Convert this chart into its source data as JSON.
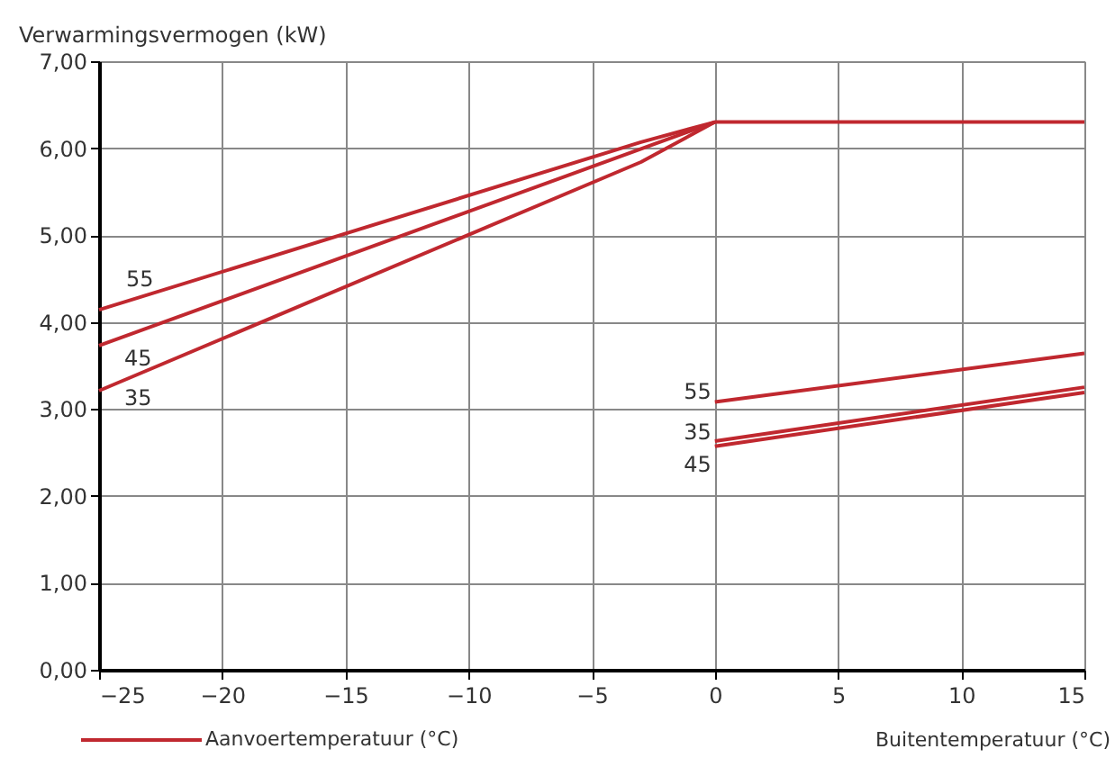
{
  "chart_data": {
    "type": "line",
    "ylabel": "Verwarmingsvermogen (kW)",
    "xlabel": "Buitentemperatuur (°C)",
    "legend_title": "Aanvoertemperatuur (°C)",
    "grid": true,
    "marker": "none",
    "line_style": "solid",
    "xlim": [
      -25,
      15
    ],
    "xticks": [
      -25,
      -20,
      -15,
      -10,
      -5,
      0,
      5,
      10,
      15
    ],
    "ylim": [
      0,
      7
    ],
    "yticks": [
      {
        "value": 0,
        "label": "0,00"
      },
      {
        "value": 1,
        "label": "1,00"
      },
      {
        "value": 2,
        "label": "2,00"
      },
      {
        "value": 3,
        "label": "3,00"
      },
      {
        "value": 4,
        "label": "4,00"
      },
      {
        "value": 5,
        "label": "5,00"
      },
      {
        "value": 6,
        "label": "6,00"
      },
      {
        "value": 7,
        "label": "7,00"
      }
    ],
    "series": [
      {
        "name": "55",
        "color": "#c0282f",
        "x": [
          -25,
          -3,
          0,
          15
        ],
        "values": [
          4.14,
          6.07,
          6.3,
          6.3
        ]
      },
      {
        "name": "45",
        "color": "#c0282f",
        "x": [
          -25,
          0
        ],
        "values": [
          3.73,
          6.3
        ]
      },
      {
        "name": "35",
        "color": "#c0282f",
        "x": [
          -25,
          -3,
          0
        ],
        "values": [
          3.21,
          5.84,
          6.3
        ]
      },
      {
        "name": "55",
        "color": "#c0282f",
        "x": [
          0,
          15
        ],
        "values": [
          3.08,
          3.64
        ]
      },
      {
        "name": "35",
        "color": "#c0282f",
        "x": [
          0,
          15
        ],
        "values": [
          2.63,
          3.25
        ]
      },
      {
        "name": "45",
        "color": "#c0282f",
        "x": [
          0,
          15
        ],
        "values": [
          2.57,
          3.19
        ]
      }
    ]
  }
}
